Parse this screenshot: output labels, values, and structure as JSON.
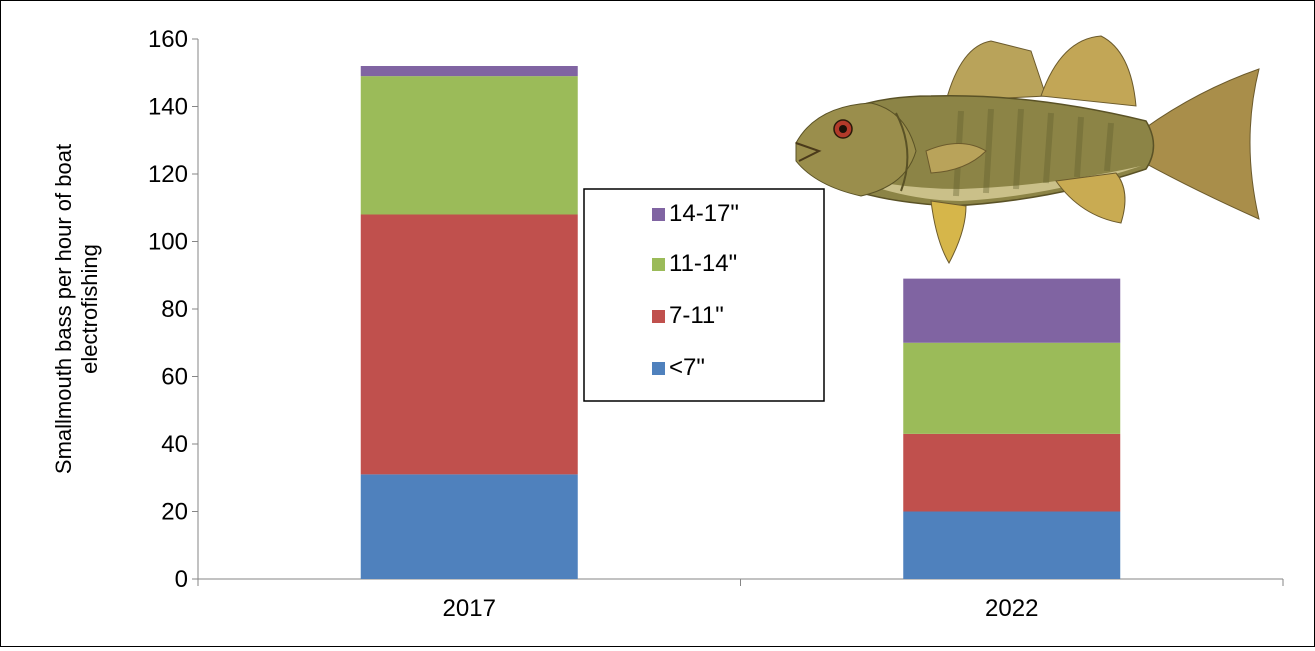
{
  "chart_data": {
    "type": "bar",
    "stacked": true,
    "categories": [
      "2017",
      "2022"
    ],
    "series": [
      {
        "name": "<7\"",
        "color": "#4f81bd",
        "values": [
          31,
          20
        ]
      },
      {
        "name": "7-11\"",
        "color": "#c0504d",
        "values": [
          77,
          23
        ]
      },
      {
        "name": "11-14\"",
        "color": "#9bbb59",
        "values": [
          41,
          27
        ]
      },
      {
        "name": "14-17\"",
        "color": "#8064a2",
        "values": [
          3,
          19
        ]
      }
    ],
    "ylabel_lines": [
      "Smallmouth bass per hour of boat",
      "electrofishing"
    ],
    "ylim": [
      0,
      160
    ],
    "yticks": [
      0,
      20,
      40,
      60,
      80,
      100,
      120,
      140,
      160
    ],
    "grid": false,
    "legend_position": "center",
    "legend_order": [
      "14-17\"",
      "11-14\"",
      "7-11\"",
      "<7\""
    ],
    "illustration_icon": "smallmouth-bass-illustration"
  }
}
